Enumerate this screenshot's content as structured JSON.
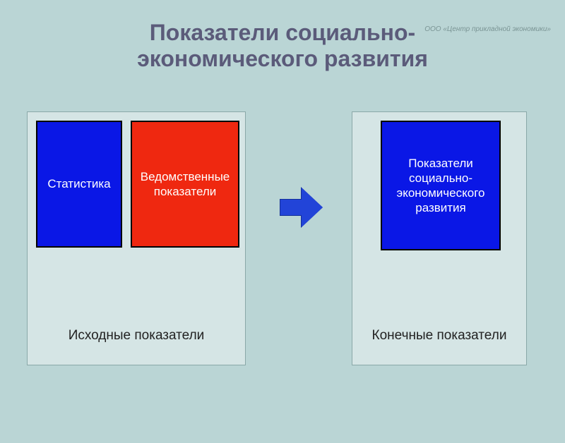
{
  "watermark": "ООО «Центр прикладной экономики»",
  "title_line1": "Показатели социально-",
  "title_line2": "экономического развития",
  "left_panel": {
    "box1_label": "Статистика",
    "box2_label": "Ведомственные показатели",
    "caption": "Исходные показатели",
    "box1_bg": "#0a17e6",
    "box2_bg": "#ef2810"
  },
  "right_panel": {
    "box_label": "Показатели социально-экономического развития",
    "caption": "Конечные показатели",
    "box_bg": "#0a17e6"
  },
  "arrow_color": "#2244d8",
  "background_color": "#bad5d5",
  "panel_bg": "#d5e5e5",
  "panel_border": "#8aa8a8",
  "title_color": "#5b5b7a"
}
